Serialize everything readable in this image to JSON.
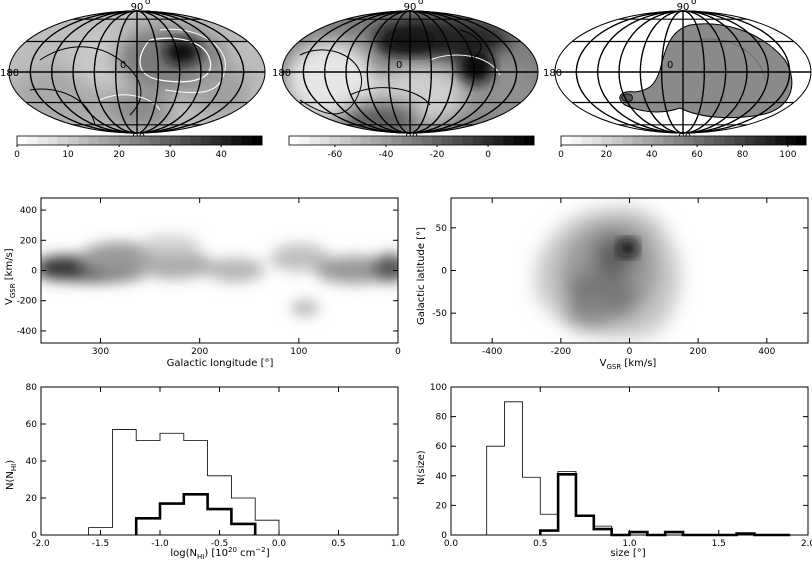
{
  "maps": [
    {
      "lat_top": "90",
      "lat_bot": "-90",
      "lon_left": "180",
      "lon_center": "0",
      "colorbar_ticks": [
        "0",
        "10",
        "20",
        "30",
        "40"
      ],
      "colorbar_vals": [
        0,
        10,
        20,
        30,
        40
      ],
      "colorbar_range": [
        0,
        48
      ]
    },
    {
      "lat_top": "90",
      "lat_bot": "-90",
      "lon_left": "180",
      "lon_center": "0",
      "colorbar_ticks": [
        "-60",
        "-40",
        "-20",
        "0"
      ],
      "colorbar_vals": [
        -60,
        -40,
        -20,
        0
      ],
      "colorbar_range": [
        -78,
        18
      ]
    },
    {
      "lat_top": "90",
      "lat_bot": "-90",
      "lon_left": "180",
      "lon_center": "0",
      "colorbar_ticks": [
        "0",
        "20",
        "40",
        "60",
        "80",
        "100"
      ],
      "colorbar_vals": [
        0,
        20,
        40,
        60,
        80,
        100
      ],
      "colorbar_range": [
        0,
        108
      ]
    }
  ],
  "panel_lv": {
    "xlabel": "Galactic longitude [°]",
    "ylabel": "V",
    "ylabel_sub": "GSR",
    "ylabel_unit": " [km/s]",
    "xlim": [
      360,
      0
    ],
    "ylim": [
      -480,
      480
    ],
    "xticks": [
      300,
      200,
      100,
      0
    ],
    "xtick_labels": [
      "300",
      "200",
      "100",
      "0"
    ],
    "yticks": [
      400,
      200,
      0,
      -200,
      -400
    ],
    "ytick_labels": [
      "400",
      "200",
      "0",
      "-200",
      "-400"
    ]
  },
  "panel_vb": {
    "xlabel": "V",
    "xlabel_sub": "GSR",
    "xlabel_unit": " [km/s]",
    "ylabel": "Galactic latitude [°]",
    "xlim": [
      -520,
      520
    ],
    "ylim": [
      -85,
      85
    ],
    "xticks": [
      -400,
      -200,
      0,
      200,
      400
    ],
    "xtick_labels": [
      "-400",
      "-200",
      "0",
      "200",
      "400"
    ],
    "yticks": [
      50,
      0,
      -50
    ],
    "ytick_labels": [
      "50",
      "0",
      "-50"
    ]
  },
  "chart_data": [
    {
      "type": "bar",
      "xlabel": "log(N",
      "xlabel_sub": "HI",
      "xlabel_unit": ") [10",
      "xlabel_sup": "20",
      "xlabel_end": " cm",
      "xlabel_sup2": "−2",
      "xlabel_close": "]",
      "ylabel": "N(N",
      "ylabel_sub": "HI",
      "ylabel_close": ")",
      "xlim": [
        -2.0,
        1.0
      ],
      "ylim": [
        0,
        80
      ],
      "xticks": [
        -2.0,
        -1.5,
        -1.0,
        -0.5,
        0.0,
        0.5,
        1.0
      ],
      "xtick_labels": [
        "-2.0",
        "-1.5",
        "-1.0",
        "-0.5",
        "0.0",
        "0.5",
        "1.0"
      ],
      "yticks": [
        0,
        20,
        40,
        60,
        80
      ],
      "ytick_labels": [
        "0",
        "20",
        "40",
        "60",
        "80"
      ],
      "series": [
        {
          "style": "thin",
          "edges": [
            -1.6,
            -1.4,
            -1.2,
            -1.0,
            -0.8,
            -0.6,
            -0.4,
            -0.2,
            0.0
          ],
          "values": [
            4,
            57,
            51,
            55,
            51,
            32,
            20,
            8
          ]
        },
        {
          "style": "thick",
          "edges": [
            -1.2,
            -1.0,
            -0.8,
            -0.6,
            -0.4,
            -0.2
          ],
          "values": [
            9,
            17,
            22,
            14,
            6
          ]
        }
      ]
    },
    {
      "type": "bar",
      "xlabel": "size [°]",
      "ylabel": "N(size)",
      "xlim": [
        0.0,
        2.0
      ],
      "ylim": [
        0,
        100
      ],
      "xticks": [
        0.0,
        0.5,
        1.0,
        1.5,
        2.0
      ],
      "xtick_labels": [
        "0.0",
        "0.5",
        "1.0",
        "1.5",
        "2.0"
      ],
      "yticks": [
        0,
        20,
        40,
        60,
        80,
        100
      ],
      "ytick_labels": [
        "0",
        "20",
        "40",
        "60",
        "80",
        "100"
      ],
      "series": [
        {
          "style": "thin",
          "edges": [
            0.2,
            0.3,
            0.4,
            0.5,
            0.6,
            0.7,
            0.8,
            0.9,
            1.0,
            1.1,
            1.2,
            1.3,
            1.4,
            1.5,
            1.6,
            1.7,
            1.8,
            1.9
          ],
          "values": [
            60,
            90,
            39,
            14,
            43,
            13,
            6,
            0,
            2,
            0,
            2,
            0,
            0,
            0,
            1,
            0,
            0
          ]
        },
        {
          "style": "thick",
          "edges": [
            0.5,
            0.6,
            0.7,
            0.8,
            0.9,
            1.0,
            1.1,
            1.2,
            1.3,
            1.4,
            1.5,
            1.6,
            1.7,
            1.8,
            1.9
          ],
          "values": [
            3,
            41,
            13,
            4,
            0,
            2,
            0,
            2,
            0,
            0,
            0,
            1,
            0,
            0
          ]
        }
      ]
    }
  ]
}
